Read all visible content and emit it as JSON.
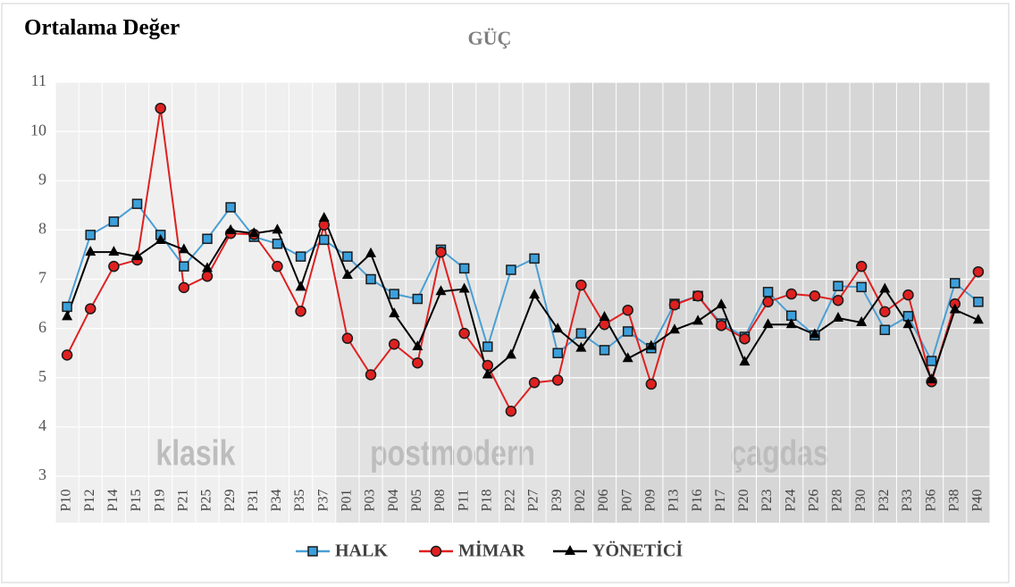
{
  "chart_data": {
    "type": "line",
    "title": "GÜÇ",
    "y_label": "Ortalama Değer",
    "categories": [
      "P10",
      "P12",
      "P14",
      "P15",
      "P19",
      "P21",
      "P25",
      "P29",
      "P31",
      "P34",
      "P35",
      "P37",
      "P01",
      "P03",
      "P04",
      "P05",
      "P08",
      "P11",
      "P18",
      "P22",
      "P27",
      "P39",
      "P02",
      "P06",
      "P07",
      "P09",
      "P13",
      "P16",
      "P17",
      "P20",
      "P23",
      "P24",
      "P26",
      "P28",
      "P30",
      "P32",
      "P33",
      "P36",
      "P38",
      "P40"
    ],
    "regions": [
      {
        "label": "klasik",
        "from": "P10",
        "to": "P37",
        "color": "#efefef"
      },
      {
        "label": "postmodern",
        "from": "P01",
        "to": "P39",
        "color": "#e2e2e2"
      },
      {
        "label": "çagdas",
        "from": "P02",
        "to": "P40",
        "color": "#d6d6d6"
      }
    ],
    "series": [
      {
        "name": "HALK",
        "color": "#4a9fd4",
        "marker": "square",
        "values": [
          6.44,
          7.9,
          8.17,
          8.53,
          7.9,
          7.26,
          7.82,
          8.46,
          7.86,
          7.72,
          7.46,
          7.8,
          7.46,
          7.0,
          6.7,
          6.6,
          7.6,
          7.22,
          5.63,
          7.19,
          7.42,
          5.5,
          5.9,
          5.56,
          5.94,
          5.6,
          6.5,
          6.66,
          6.1,
          5.83,
          6.74,
          6.26,
          5.86,
          6.86,
          6.84,
          5.97,
          6.25,
          5.34,
          6.92,
          6.54
        ]
      },
      {
        "name": "MİMAR",
        "color": "#e02020",
        "marker": "circle",
        "values": [
          5.46,
          6.4,
          7.26,
          7.39,
          10.47,
          6.83,
          7.06,
          7.93,
          7.91,
          7.26,
          6.35,
          8.1,
          5.8,
          5.06,
          5.68,
          5.3,
          7.55,
          5.9,
          5.25,
          4.32,
          4.9,
          4.95,
          6.88,
          6.08,
          6.37,
          4.87,
          6.48,
          6.66,
          6.06,
          5.79,
          6.54,
          6.7,
          6.66,
          6.57,
          7.26,
          6.34,
          6.68,
          4.92,
          6.5,
          7.15
        ]
      },
      {
        "name": "YÖNETİCİ",
        "color": "#000000",
        "marker": "triangle",
        "values": [
          6.24,
          7.55,
          7.55,
          7.46,
          7.79,
          7.6,
          7.22,
          7.99,
          7.93,
          8.0,
          6.84,
          8.24,
          7.08,
          7.52,
          6.3,
          5.63,
          6.75,
          6.8,
          5.06,
          5.46,
          6.68,
          5.99,
          5.6,
          6.23,
          5.39,
          5.64,
          5.97,
          6.15,
          6.48,
          5.32,
          6.08,
          6.08,
          5.88,
          6.21,
          6.12,
          6.8,
          6.08,
          4.96,
          6.38,
          6.17
        ]
      }
    ],
    "ylim": [
      3,
      11
    ],
    "yticks": [
      3,
      4,
      5,
      6,
      7,
      8,
      9,
      10,
      11
    ],
    "grid": true,
    "legend": "bottom"
  }
}
